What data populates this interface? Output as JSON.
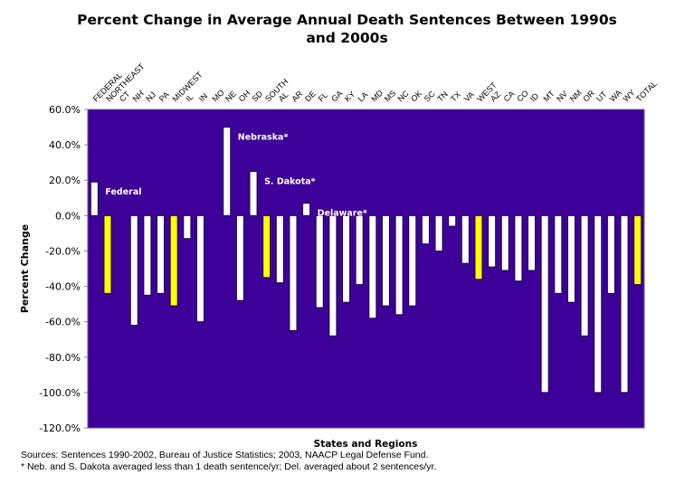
{
  "chart_data": {
    "type": "bar",
    "title_line1": "Percent Change in Average Annual Death Sentences Between 1990s",
    "title_line2": "and 2000s",
    "xlabel": "States and Regions",
    "ylabel": "Percent Change",
    "ylim": [
      -120,
      60
    ],
    "yticks": [
      60,
      40,
      20,
      0,
      -20,
      -40,
      -60,
      -80,
      -100,
      -120
    ],
    "ytick_labels": [
      "60.0%",
      "40.0%",
      "20.0%",
      "0.0%",
      "-20.0%",
      "-40.0%",
      "-60.0%",
      "-80.0%",
      "-100.0%",
      "-120.0%"
    ],
    "grid": false,
    "legend": "none",
    "categories": [
      "FEDERAL",
      "NORTHEAST",
      "CT",
      "NH",
      "NJ",
      "PA",
      "MIDWEST",
      "IL",
      "IN",
      "MO",
      "NE",
      "OH",
      "SD",
      "SOUTH",
      "AL",
      "AR",
      "DE",
      "FL",
      "GA",
      "KY",
      "LA",
      "MD",
      "MS",
      "NC",
      "OK",
      "SC",
      "TN",
      "TX",
      "VA",
      "WEST",
      "AZ",
      "CA",
      "CO",
      "ID",
      "MT",
      "NV",
      "NM",
      "OR",
      "UT",
      "WA",
      "WY",
      "TOTAL"
    ],
    "values": [
      19,
      -44,
      0,
      -62,
      -45,
      -44,
      -51,
      -13,
      -60,
      0,
      50,
      -48,
      25,
      -35,
      -38,
      -65,
      7,
      -52,
      -68,
      -49,
      -39,
      -58,
      -51,
      -56,
      -51,
      -16,
      -20,
      -6,
      -27,
      -36,
      -29,
      -31,
      -37,
      -31,
      -100,
      -44,
      -49,
      -68,
      -100,
      -44,
      -100,
      -39
    ],
    "highlight_categories": [
      "NORTHEAST",
      "MIDWEST",
      "SOUTH",
      "WEST",
      "TOTAL"
    ],
    "annotations": [
      {
        "text": "Federal",
        "category": "FEDERAL"
      },
      {
        "text": "Nebraska*",
        "category": "NE"
      },
      {
        "text": "S. Dakota*",
        "category": "SD"
      },
      {
        "text": "Delaware*",
        "category": "DE"
      }
    ],
    "colors": {
      "plot_background": "#3d0098",
      "bar": "#ffffff",
      "highlight_bar": "#ffff00",
      "bar_outline": "#1a0040",
      "annotation_text": "#ffffff"
    }
  },
  "notes": {
    "sources": "Sources: Sentences 1990-2002, Bureau of Justice Statistics; 2003, NAACP Legal Defense Fund.",
    "footnote": "* Neb. and S. Dakota averaged less than 1 death sentence/yr; Del. averaged about 2 sentences/yr."
  }
}
